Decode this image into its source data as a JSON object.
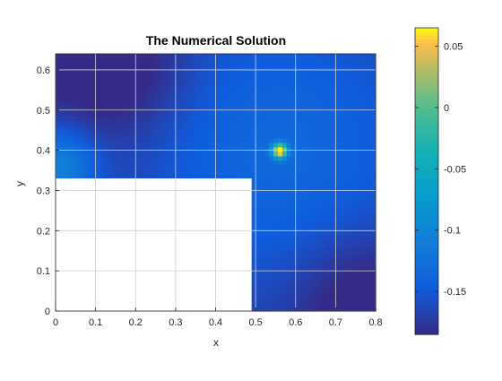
{
  "chart_data": {
    "type": "heatmap",
    "title": "The Numerical Solution",
    "xlabel": "x",
    "ylabel": "y",
    "xlim": [
      0,
      0.8
    ],
    "ylim": [
      0,
      0.64
    ],
    "x_ticks": [
      "0",
      "0.1",
      "0.2",
      "0.3",
      "0.4",
      "0.5",
      "0.6",
      "0.7",
      "0.8"
    ],
    "y_ticks": [
      "0",
      "0.1",
      "0.2",
      "0.3",
      "0.4",
      "0.5",
      "0.6"
    ],
    "colorbar": {
      "colormap": "parula",
      "clim": [
        -0.185,
        0.065
      ],
      "ticks": [
        "0.05",
        "0",
        "-0.05",
        "-0.1",
        "-0.15"
      ],
      "tick_values": [
        0.05,
        0,
        -0.05,
        -0.1,
        -0.15
      ]
    },
    "grid": true,
    "domain": {
      "shape": "L-shaped",
      "full_rect": {
        "x": [
          0,
          0.8
        ],
        "y": [
          0,
          0.64
        ]
      },
      "excluded_rect": {
        "x": [
          0,
          0.49
        ],
        "y": [
          0,
          0.33
        ]
      }
    },
    "features": [
      {
        "kind": "peak",
        "x": 0.56,
        "y": 0.4,
        "value": 0.065
      },
      {
        "kind": "local-high",
        "x": 0.0,
        "y": 0.36,
        "value": -0.09
      },
      {
        "kind": "low",
        "x": 0.16,
        "y": 0.6,
        "value": -0.185
      },
      {
        "kind": "low",
        "x": 0.76,
        "y": 0.03,
        "value": -0.185
      }
    ]
  }
}
